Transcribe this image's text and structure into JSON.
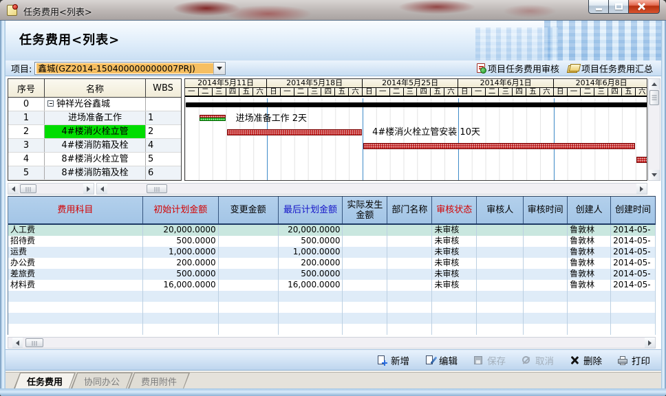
{
  "window": {
    "title": "任务费用<列表>"
  },
  "page": {
    "title": "任务费用<列表>"
  },
  "toolbar": {
    "project_label": "项目:",
    "project_value": "鑫城(GZ2014-150400000000007PRJ)",
    "links": [
      {
        "label": "项目任务费用审核",
        "icon": "audit-doc-icon"
      },
      {
        "label": "项目任务费用汇总",
        "icon": "summary-stack-icon"
      }
    ]
  },
  "gantt": {
    "left_columns": [
      {
        "label": "序号",
        "width": 53
      },
      {
        "label": "名称",
        "width": 147
      },
      {
        "label": "WBS",
        "width": 50
      }
    ],
    "tasks": [
      {
        "seq": "0",
        "name": "钟祥光谷鑫城",
        "wbs": "",
        "root": true,
        "selected": false
      },
      {
        "seq": "1",
        "name": "进场准备工作",
        "wbs": "1",
        "root": false,
        "selected": false
      },
      {
        "seq": "2",
        "name": "4#楼消火栓立管",
        "wbs": "2",
        "root": false,
        "selected": true
      },
      {
        "seq": "3",
        "name": "4#楼消防箱及栓",
        "wbs": "4",
        "root": false,
        "selected": false
      },
      {
        "seq": "4",
        "name": "8#楼消火栓立管",
        "wbs": "5",
        "root": false,
        "selected": false
      },
      {
        "seq": "5",
        "name": "8#楼消防箱及栓",
        "wbs": "6",
        "root": false,
        "selected": false
      }
    ],
    "weeks": [
      {
        "label": "2014年5月11日",
        "days": [
          "一",
          "二",
          "三",
          "四",
          "五",
          "六"
        ]
      },
      {
        "label": "2014年5月18日",
        "days": [
          "日",
          "一",
          "二",
          "三",
          "四",
          "五",
          "六"
        ]
      },
      {
        "label": "2014年5月25日",
        "days": [
          "日",
          "一",
          "二",
          "三",
          "四",
          "五",
          "六"
        ]
      },
      {
        "label": "2014年6月1日",
        "days": [
          "日",
          "一",
          "二",
          "三",
          "四",
          "五",
          "六"
        ]
      },
      {
        "label": "2014年6月8日",
        "days": [
          "日",
          "一",
          "二",
          "三",
          "四",
          "五",
          "六"
        ]
      }
    ],
    "day_width": 19.857,
    "bars": [
      {
        "row": 0,
        "start": 0,
        "days": 34,
        "type": "summary",
        "label": ""
      },
      {
        "row": 1,
        "start": 1,
        "days": 2,
        "type": "progress",
        "label": "进场准备工作 2天"
      },
      {
        "row": 2,
        "start": 3,
        "days": 10,
        "type": "task",
        "label": "4#楼消火栓立管安装 10天"
      },
      {
        "row": 3,
        "start": 13,
        "days": 20,
        "type": "task",
        "label": ""
      },
      {
        "row": 4,
        "start": 33,
        "days": 2,
        "type": "task",
        "label": ""
      }
    ]
  },
  "cost_table": {
    "columns": [
      {
        "label": "费用科目",
        "color": "#d40000",
        "width": 196,
        "align": "left"
      },
      {
        "label": "初始计划金额",
        "color": "#d40000",
        "width": 110,
        "align": "right"
      },
      {
        "label": "变更金额",
        "color": "#000000",
        "width": 87,
        "align": "right"
      },
      {
        "label": "最后计划金额",
        "color": "#1515c8",
        "width": 94,
        "align": "right"
      },
      {
        "label": "实际发生金额",
        "color": "#000000",
        "width": 65,
        "align": "right"
      },
      {
        "label": "部门名称",
        "color": "#000000",
        "width": 65,
        "align": "left"
      },
      {
        "label": "审核状态",
        "color": "#d40000",
        "width": 65,
        "align": "left"
      },
      {
        "label": "审核人",
        "color": "#000000",
        "width": 68,
        "align": "left"
      },
      {
        "label": "审核时间",
        "color": "#000000",
        "width": 64,
        "align": "left"
      },
      {
        "label": "创建人",
        "color": "#000000",
        "width": 63,
        "align": "left"
      },
      {
        "label": "创建时间",
        "color": "#000000",
        "width": 65,
        "align": "left"
      }
    ],
    "rows": [
      [
        "人工费",
        "20,000.0000",
        "",
        "20,000.0000",
        "",
        "",
        "未审核",
        "",
        "",
        "鲁敦林",
        "2014-05-"
      ],
      [
        "招待费",
        "500.0000",
        "",
        "500.0000",
        "",
        "",
        "未审核",
        "",
        "",
        "鲁敦林",
        "2014-05-"
      ],
      [
        "运费",
        "1,000.0000",
        "",
        "1,000.0000",
        "",
        "",
        "未审核",
        "",
        "",
        "鲁敦林",
        "2014-05-"
      ],
      [
        "办公费",
        "200.0000",
        "",
        "200.0000",
        "",
        "",
        "未审核",
        "",
        "",
        "鲁敦林",
        "2014-05-"
      ],
      [
        "差旅费",
        "500.0000",
        "",
        "500.0000",
        "",
        "",
        "未审核",
        "",
        "",
        "鲁敦林",
        "2014-05-"
      ],
      [
        "材料费",
        "16,000.0000",
        "",
        "16,000.0000",
        "",
        "",
        "未审核",
        "",
        "",
        "鲁敦林",
        "2014-05-"
      ]
    ],
    "selected_row": 0,
    "empty_row_count": 4
  },
  "actions": [
    {
      "label": "新增",
      "icon": "add",
      "enabled": true
    },
    {
      "label": "编辑",
      "icon": "edit",
      "enabled": true
    },
    {
      "label": "保存",
      "icon": "save",
      "enabled": false
    },
    {
      "label": "取消",
      "icon": "cancel",
      "enabled": false
    },
    {
      "label": "删除",
      "icon": "delete",
      "enabled": true
    },
    {
      "label": "打印",
      "icon": "print",
      "enabled": true
    }
  ],
  "tabs": [
    {
      "label": "任务费用",
      "active": true
    },
    {
      "label": "协同办公",
      "active": false
    },
    {
      "label": "费用附件",
      "active": false
    }
  ]
}
